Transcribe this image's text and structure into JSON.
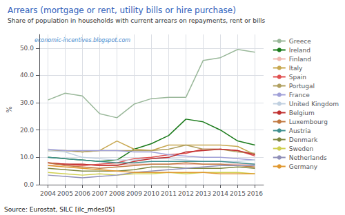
{
  "chart_data": {
    "type": "line",
    "title": "Arrears (mortgage or rent, utility bills or hire purchase)",
    "subtitle": "Share of population in households with current arrears on repayments, rent or bills",
    "y_label": "%",
    "annotations": [
      "economic-incentives.blogspot.com",
      "Source: Eurostat, SILC [ilc_mdes05]"
    ],
    "x": [
      2004,
      2005,
      2006,
      2007,
      2008,
      2009,
      2010,
      2011,
      2012,
      2013,
      2014,
      2015,
      2016
    ],
    "xlim": [
      2003.5,
      2016.5
    ],
    "xticks": [
      2004,
      2005,
      2006,
      2007,
      2008,
      2009,
      2010,
      2011,
      2012,
      2013,
      2014,
      2015,
      2016
    ],
    "ylim": [
      0,
      55
    ],
    "yticks": [
      {
        "value": 0,
        "label": "0.0"
      },
      {
        "value": 10,
        "label": "10.0"
      },
      {
        "value": 20,
        "label": "20.0"
      },
      {
        "value": 30,
        "label": "30.0"
      },
      {
        "value": 40,
        "label": "40.0"
      },
      {
        "value": 50,
        "label": "50.0"
      }
    ],
    "grid": true,
    "legend": "right",
    "series": [
      {
        "name": "Greece",
        "color": "#9ab89a",
        "values": [
          31.0,
          33.5,
          32.5,
          26.0,
          24.5,
          29.5,
          31.5,
          32.0,
          32.0,
          45.5,
          46.5,
          49.5,
          48.5
        ]
      },
      {
        "name": "Ireland",
        "color": "#1a7a1a",
        "values": [
          10.0,
          9.5,
          9.0,
          8.5,
          9.0,
          13.0,
          15.0,
          18.0,
          24.0,
          23.0,
          20.0,
          16.0,
          14.5
        ]
      },
      {
        "name": "Finland",
        "color": "#f0b8b0",
        "values": [
          7.0,
          7.5,
          7.5,
          7.0,
          7.5,
          7.5,
          7.5,
          7.5,
          7.5,
          7.5,
          7.5,
          7.5,
          7.5
        ]
      },
      {
        "name": "Italy",
        "color": "#c8a850",
        "values": [
          12.5,
          12.5,
          12.0,
          12.5,
          16.0,
          13.0,
          12.5,
          14.5,
          14.5,
          14.5,
          14.5,
          14.0,
          11.0
        ]
      },
      {
        "name": "Spain",
        "color": "#e05050",
        "values": [
          8.0,
          7.5,
          7.0,
          7.5,
          8.0,
          9.5,
          10.0,
          11.0,
          11.5,
          13.0,
          13.0,
          12.5,
          10.5
        ]
      },
      {
        "name": "Portugal",
        "color": "#b0a060",
        "values": [
          12.5,
          12.5,
          12.0,
          12.5,
          12.5,
          12.5,
          12.5,
          13.0,
          14.5,
          13.0,
          13.0,
          12.0,
          11.5
        ]
      },
      {
        "name": "France",
        "color": "#a0a0d8",
        "values": [
          13.0,
          12.5,
          12.5,
          12.5,
          12.5,
          12.0,
          12.0,
          11.0,
          10.5,
          10.0,
          10.0,
          9.5,
          9.0
        ]
      },
      {
        "name": "United Kingdom",
        "color": "#c0d0e0",
        "values": [
          12.5,
          12.0,
          10.0,
          9.5,
          9.0,
          9.0,
          9.5,
          9.5,
          9.0,
          8.5,
          8.5,
          8.5,
          9.0
        ]
      },
      {
        "name": "Belgium",
        "color": "#c03030",
        "values": [
          8.0,
          7.5,
          7.5,
          7.0,
          7.0,
          8.5,
          9.5,
          10.0,
          12.0,
          12.5,
          13.0,
          12.5,
          11.0
        ]
      },
      {
        "name": "Luxembourg",
        "color": "#c07840",
        "values": [
          8.0,
          7.0,
          6.5,
          6.0,
          6.5,
          7.0,
          7.5,
          7.5,
          8.0,
          7.5,
          7.5,
          7.0,
          6.5
        ]
      },
      {
        "name": "Austria",
        "color": "#409090",
        "values": [
          10.0,
          9.5,
          9.0,
          8.5,
          8.0,
          8.0,
          8.5,
          8.5,
          8.5,
          8.5,
          8.5,
          8.0,
          7.5
        ]
      },
      {
        "name": "Denmark",
        "color": "#808840",
        "values": [
          6.0,
          5.5,
          5.0,
          5.0,
          5.0,
          5.5,
          6.5,
          6.5,
          6.0,
          6.0,
          6.0,
          6.5,
          6.0
        ]
      },
      {
        "name": "Sweden",
        "color": "#d0d050",
        "values": [
          4.5,
          4.0,
          3.5,
          4.0,
          3.5,
          4.0,
          4.0,
          4.5,
          4.0,
          4.5,
          4.5,
          4.5,
          4.0
        ]
      },
      {
        "name": "Netherlands",
        "color": "#9090b8",
        "values": [
          3.5,
          3.0,
          2.5,
          3.0,
          3.5,
          4.5,
          5.0,
          5.5,
          6.0,
          6.5,
          7.0,
          7.0,
          7.0
        ]
      },
      {
        "name": "Germany",
        "color": "#e09830",
        "values": [
          7.0,
          6.5,
          6.0,
          5.5,
          5.0,
          4.5,
          4.5,
          4.5,
          4.5,
          4.5,
          4.0,
          4.0,
          4.0
        ]
      }
    ]
  }
}
